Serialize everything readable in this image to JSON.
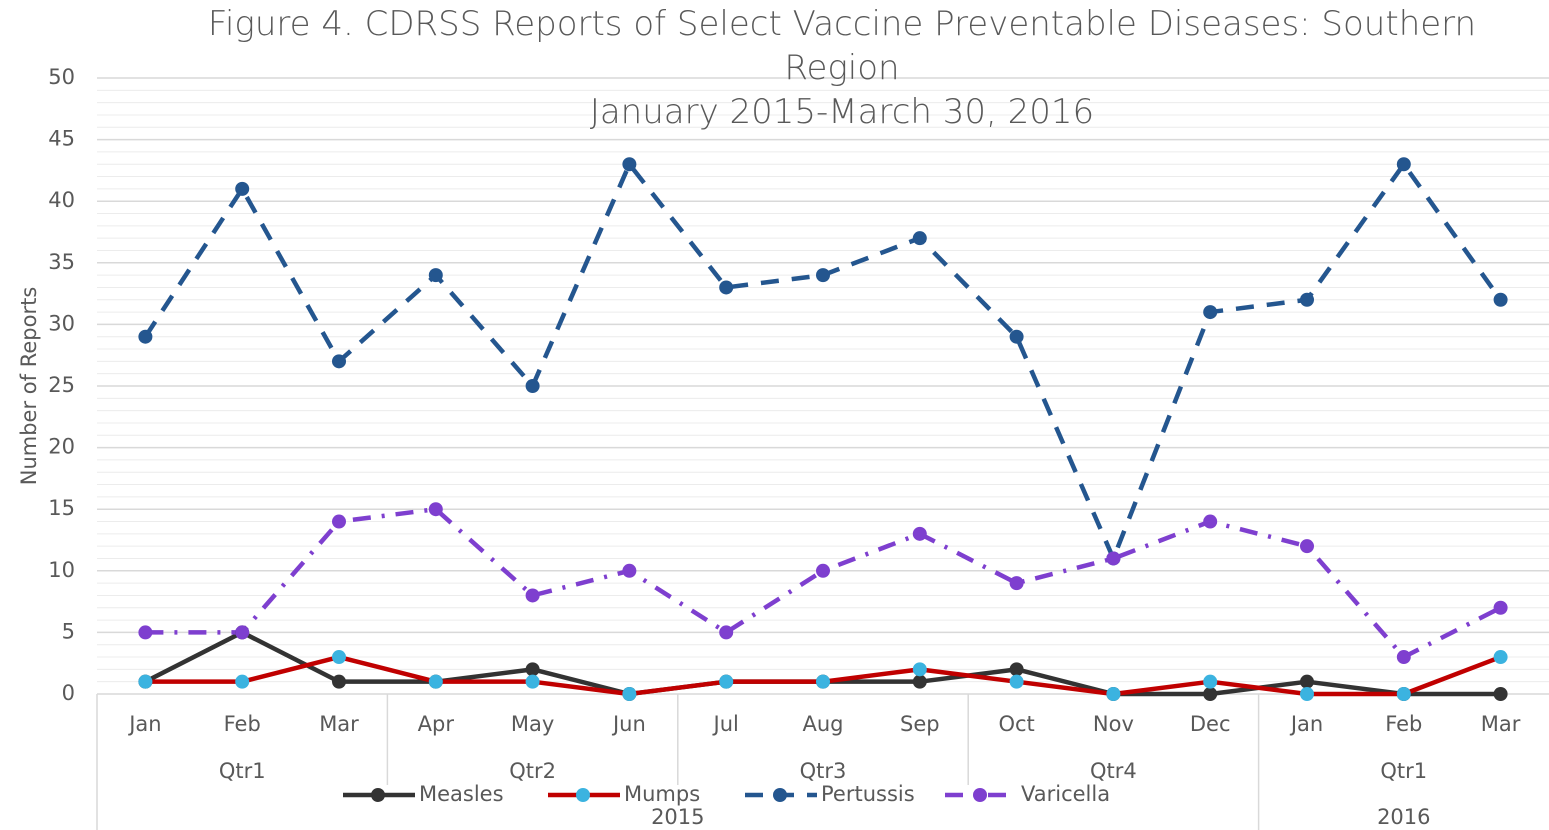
{
  "chart_data": {
    "type": "line",
    "title": "Figure 4. CDRSS Reports of Select Vaccine Preventable Diseases: Southern Region",
    "subtitle": "January 2015-March 30, 2016",
    "y_label": "Number of Reports",
    "groups": [
      {
        "name": "2015",
        "quarters": [
          {
            "name": "Qtr1",
            "months": [
              "Jan",
              "Feb",
              "Mar"
            ]
          },
          {
            "name": "Qtr2",
            "months": [
              "Apr",
              "May",
              "Jun"
            ]
          },
          {
            "name": "Qtr3",
            "months": [
              "Jul",
              "Aug",
              "Sep"
            ]
          },
          {
            "name": "Qtr4",
            "months": [
              "Oct",
              "Nov",
              "Dec"
            ]
          }
        ]
      },
      {
        "name": "2016",
        "quarters": [
          {
            "name": "Qtr1",
            "months": [
              "Jan",
              "Feb",
              "Mar"
            ]
          }
        ]
      }
    ],
    "series": [
      {
        "name": "Measles",
        "color": "#333333",
        "marker_color": "#333333",
        "dash": "solid",
        "values": [
          1,
          5,
          1,
          1,
          2,
          0,
          1,
          1,
          1,
          2,
          0,
          0,
          1,
          0,
          0
        ]
      },
      {
        "name": "Mumps",
        "color": "#c00000",
        "marker_color": "#3bb3e0",
        "dash": "solid",
        "values": [
          1,
          1,
          3,
          1,
          1,
          0,
          1,
          1,
          2,
          1,
          0,
          1,
          0,
          0,
          3
        ]
      },
      {
        "name": "Pertussis",
        "color": "#24568f",
        "marker_color": "#24568f",
        "dash": "dash",
        "values": [
          29,
          41,
          27,
          34,
          25,
          43,
          33,
          34,
          37,
          29,
          11,
          31,
          32,
          43,
          32
        ]
      },
      {
        "name": "Varicella",
        "color": "#7e3fcf",
        "marker_color": "#7e3fcf",
        "dash": "dashdot",
        "values": [
          5,
          5,
          14,
          15,
          8,
          10,
          5,
          10,
          13,
          9,
          11,
          14,
          12,
          3,
          7
        ]
      }
    ],
    "ylim": [
      0,
      50
    ],
    "yticks": [
      0,
      5,
      10,
      15,
      20,
      25,
      30,
      35,
      40,
      45,
      50
    ],
    "grid": true,
    "minor_grid": true,
    "legend": "bottom"
  }
}
